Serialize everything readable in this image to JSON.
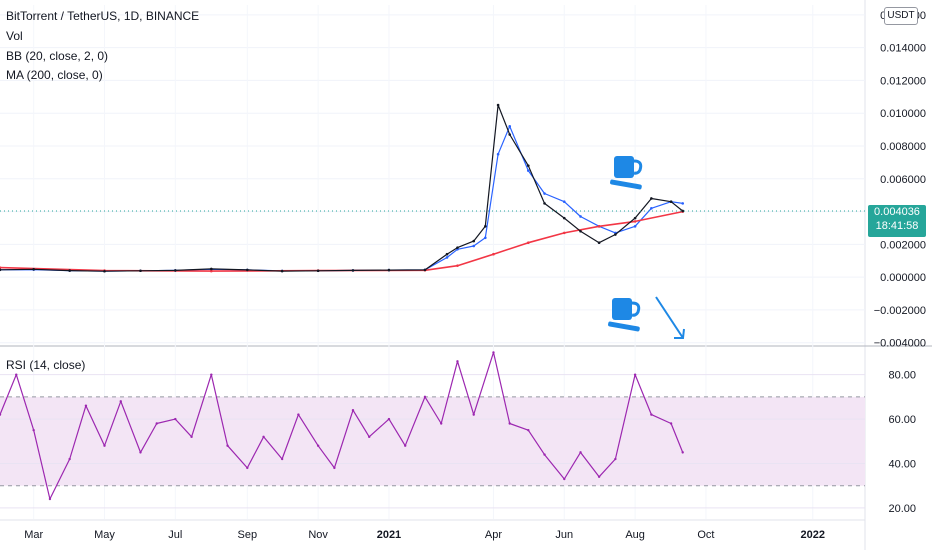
{
  "header": {
    "symbol": "BitTorrent / TetherUS, 1D, BINANCE",
    "indicators": [
      "Vol",
      "BB (20, close, 2, 0)",
      "MA (200, close, 0)"
    ],
    "currency": "USDT",
    "price_now": "0.004036",
    "countdown": "18:41:58"
  },
  "rsi_pane": {
    "label": "RSI (14, close)"
  },
  "colors": {
    "candle_up": "#26a69a",
    "candle_down": "#131722",
    "bollinger": "#2962ff",
    "bb_basis": "#ff9800",
    "ma200": "#f23645",
    "rsi_line": "#9c27b0",
    "rsi_band": "#f3e5f5",
    "annotation": "#1e88e5",
    "price_badge": "#26a69a"
  },
  "icons": [
    "coffee-cup-icon",
    "coffee-cup-icon",
    "arrow-down-right-icon"
  ],
  "chart_data": [
    {
      "type": "line",
      "title": "BitTorrent / TetherUS, 1D, BINANCE",
      "x_ticks": [
        "Mar",
        "May",
        "Jul",
        "Sep",
        "Nov",
        "2021",
        "Apr",
        "Jun",
        "Aug",
        "Oct",
        "2022"
      ],
      "y_ticks": [
        "0.016000",
        "0.014000",
        "0.012000",
        "0.010000",
        "0.008000",
        "0.006000",
        "0.004000",
        "0.002000",
        "0.000000",
        "−0.002000",
        "−0.004000"
      ],
      "ylim": [
        -0.0042,
        0.0166
      ],
      "series": [
        {
          "name": "BB (20, close, 2, 0)",
          "x": [
            "2020-02-01",
            "2020-03-01",
            "2020-04-01",
            "2020-05-01",
            "2020-06-01",
            "2020-07-01",
            "2020-08-01",
            "2020-09-01",
            "2020-10-01",
            "2020-11-01",
            "2020-12-01",
            "2021-01-01",
            "2021-02-01",
            "2021-02-20",
            "2021-03-01",
            "2021-03-15",
            "2021-03-25",
            "2021-04-05",
            "2021-04-15",
            "2021-05-01",
            "2021-05-15",
            "2021-06-01",
            "2021-06-15",
            "2021-07-01",
            "2021-07-15",
            "2021-08-01",
            "2021-08-15",
            "2021-09-01",
            "2021-09-11"
          ],
          "values": [
            0.00045,
            0.00046,
            0.0004,
            0.00037,
            0.00039,
            0.00041,
            0.00048,
            0.00044,
            0.00038,
            0.00039,
            0.00041,
            0.00043,
            0.00045,
            0.0012,
            0.0017,
            0.0019,
            0.0024,
            0.0075,
            0.0092,
            0.0065,
            0.0051,
            0.0046,
            0.0037,
            0.0031,
            0.0027,
            0.0031,
            0.0042,
            0.0046,
            0.0045
          ]
        },
        {
          "name": "MA (200, close, 0)",
          "x": [
            "2020-02-01",
            "2020-05-01",
            "2020-08-01",
            "2020-11-01",
            "2021-02-01",
            "2021-03-01",
            "2021-04-01",
            "2021-05-01",
            "2021-06-01",
            "2021-07-01",
            "2021-08-01",
            "2021-09-11"
          ],
          "values": [
            0.00058,
            0.0004,
            0.00037,
            0.0004,
            0.00042,
            0.0007,
            0.0014,
            0.0021,
            0.0027,
            0.0031,
            0.0034,
            0.004
          ]
        },
        {
          "name": "Close",
          "x": [
            "2020-02-01",
            "2020-03-01",
            "2020-04-01",
            "2020-05-01",
            "2020-06-01",
            "2020-07-01",
            "2020-08-01",
            "2020-09-01",
            "2020-10-01",
            "2020-11-01",
            "2020-12-01",
            "2021-01-01",
            "2021-02-01",
            "2021-02-20",
            "2021-03-01",
            "2021-03-15",
            "2021-03-25",
            "2021-04-05",
            "2021-04-15",
            "2021-05-01",
            "2021-05-15",
            "2021-06-01",
            "2021-06-15",
            "2021-07-01",
            "2021-07-15",
            "2021-08-01",
            "2021-08-15",
            "2021-09-01",
            "2021-09-11"
          ],
          "values": [
            0.00045,
            0.00048,
            0.0004,
            0.00036,
            0.00039,
            0.00041,
            0.0005,
            0.00044,
            0.00037,
            0.00039,
            0.00041,
            0.00043,
            0.00044,
            0.0014,
            0.0018,
            0.0022,
            0.0031,
            0.0105,
            0.0087,
            0.0068,
            0.0045,
            0.0036,
            0.0028,
            0.0021,
            0.0026,
            0.0036,
            0.0048,
            0.0046,
            0.004036
          ]
        }
      ]
    },
    {
      "type": "line",
      "title": "RSI (14, close)",
      "x_ticks": [
        "Mar",
        "May",
        "Jul",
        "Sep",
        "Nov",
        "2021",
        "Apr",
        "Jun",
        "Aug",
        "Oct",
        "2022"
      ],
      "y_ticks": [
        "80.00",
        "60.00",
        "40.00",
        "20.00"
      ],
      "ylim": [
        15,
        92
      ],
      "bands": [
        30,
        70
      ],
      "series": [
        {
          "name": "RSI (14, close)",
          "x": [
            "2020-02-01",
            "2020-02-15",
            "2020-03-01",
            "2020-03-15",
            "2020-04-01",
            "2020-04-15",
            "2020-05-01",
            "2020-05-15",
            "2020-06-01",
            "2020-06-15",
            "2020-07-01",
            "2020-07-15",
            "2020-08-01",
            "2020-08-15",
            "2020-09-01",
            "2020-09-15",
            "2020-10-01",
            "2020-10-15",
            "2020-11-01",
            "2020-11-15",
            "2020-12-01",
            "2020-12-15",
            "2021-01-01",
            "2021-01-15",
            "2021-02-01",
            "2021-02-15",
            "2021-03-01",
            "2021-03-15",
            "2021-04-01",
            "2021-04-15",
            "2021-05-01",
            "2021-05-15",
            "2021-06-01",
            "2021-06-15",
            "2021-07-01",
            "2021-07-15",
            "2021-08-01",
            "2021-08-15",
            "2021-09-01",
            "2021-09-11"
          ],
          "values": [
            62,
            80,
            55,
            24,
            42,
            66,
            48,
            68,
            45,
            58,
            60,
            52,
            80,
            48,
            38,
            52,
            42,
            62,
            48,
            38,
            64,
            52,
            60,
            48,
            70,
            58,
            86,
            62,
            90,
            58,
            55,
            44,
            33,
            45,
            34,
            42,
            80,
            62,
            58,
            45
          ]
        }
      ]
    }
  ]
}
